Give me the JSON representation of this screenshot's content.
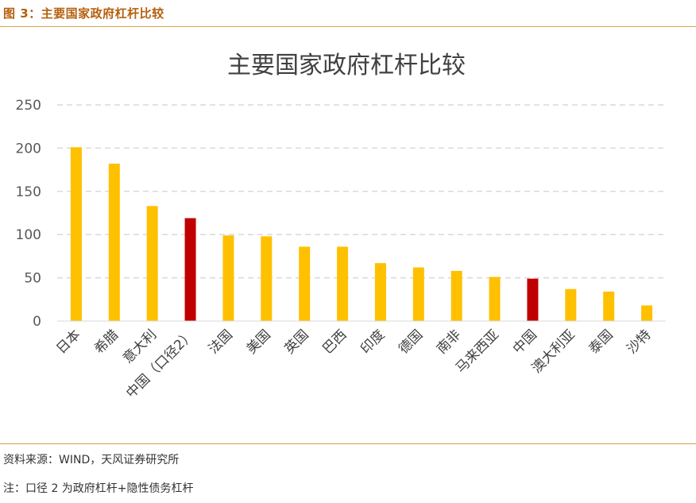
{
  "figure": {
    "caption": "图 3：主要国家政府杠杆比较",
    "source": "资料来源：WIND，天风证券研究所",
    "note": "注：口径 2 为政府杠杆+隐性债务杠杆"
  },
  "chart_data": {
    "type": "bar",
    "title": "主要国家政府杠杆比较",
    "xlabel": "",
    "ylabel": "",
    "ylim": [
      0,
      250
    ],
    "yticks": [
      0,
      50,
      100,
      150,
      200,
      250
    ],
    "grid": true,
    "legend": "none",
    "categories": [
      "日本",
      "希腊",
      "意大利",
      "中国（口径2）",
      "法国",
      "美国",
      "英国",
      "巴西",
      "印度",
      "德国",
      "南非",
      "马来西亚",
      "中国",
      "澳大利亚",
      "泰国",
      "沙特"
    ],
    "values": [
      201,
      182,
      133,
      119,
      99,
      98,
      86,
      86,
      67,
      62,
      58,
      51,
      49,
      37,
      34,
      18
    ],
    "colors": {
      "default": "#ffc000",
      "highlight": "#c00000",
      "highlight_categories": [
        "中国（口径2）",
        "中国"
      ]
    }
  }
}
